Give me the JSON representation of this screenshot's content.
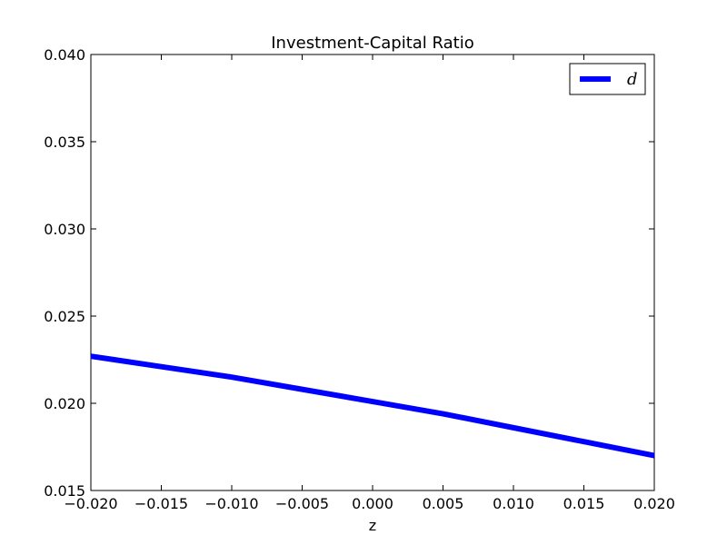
{
  "chart_data": {
    "type": "line",
    "title": "Investment-Capital Ratio",
    "xlabel": "z",
    "ylabel": "",
    "xlim": [
      -0.02,
      0.02
    ],
    "ylim": [
      0.015,
      0.04
    ],
    "x_ticks": [
      -0.02,
      -0.015,
      -0.01,
      -0.005,
      0.0,
      0.005,
      0.01,
      0.015,
      0.02
    ],
    "x_tick_labels": [
      "−0.020",
      "−0.015",
      "−0.010",
      "−0.005",
      "0.000",
      "0.005",
      "0.010",
      "0.015",
      "0.020"
    ],
    "y_ticks": [
      0.015,
      0.02,
      0.025,
      0.03,
      0.035,
      0.04
    ],
    "y_tick_labels": [
      "0.015",
      "0.020",
      "0.025",
      "0.030",
      "0.035",
      "0.040"
    ],
    "grid": false,
    "legend_position": "top-right",
    "series": [
      {
        "name": "d",
        "color": "#0000ff",
        "x": [
          -0.02,
          -0.015,
          -0.01,
          -0.005,
          0.0,
          0.005,
          0.01,
          0.015,
          0.02
        ],
        "y": [
          0.0227,
          0.0221,
          0.0215,
          0.0208,
          0.0201,
          0.0194,
          0.0186,
          0.0178,
          0.017
        ]
      }
    ]
  }
}
